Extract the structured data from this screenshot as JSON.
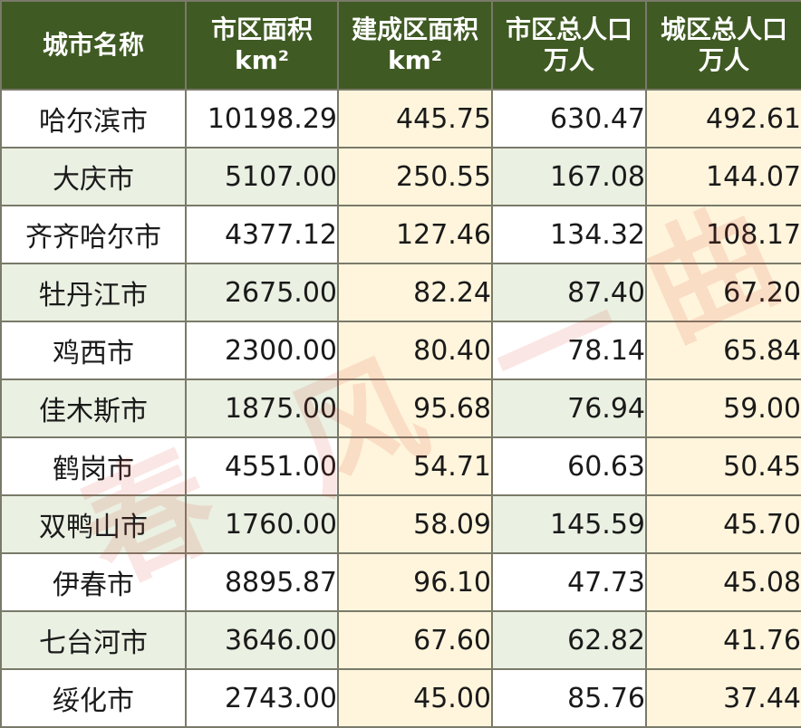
{
  "table": {
    "headers": [
      {
        "line1": "城市名称",
        "line2": ""
      },
      {
        "line1": "市区面积",
        "line2": "km²"
      },
      {
        "line1": "建成区面积",
        "line2": "km²"
      },
      {
        "line1": "市区总人口",
        "line2": "万人"
      },
      {
        "line1": "城区总人口",
        "line2": "万人"
      }
    ],
    "rows": [
      {
        "city": "哈尔滨市",
        "urban_area": "10198.29",
        "built_area": "445.75",
        "urban_pop": "630.47",
        "city_pop": "492.61"
      },
      {
        "city": "大庆市",
        "urban_area": "5107.00",
        "built_area": "250.55",
        "urban_pop": "167.08",
        "city_pop": "144.07"
      },
      {
        "city": "齐齐哈尔市",
        "urban_area": "4377.12",
        "built_area": "127.46",
        "urban_pop": "134.32",
        "city_pop": "108.17"
      },
      {
        "city": "牡丹江市",
        "urban_area": "2675.00",
        "built_area": "82.24",
        "urban_pop": "87.40",
        "city_pop": "67.20"
      },
      {
        "city": "鸡西市",
        "urban_area": "2300.00",
        "built_area": "80.40",
        "urban_pop": "78.14",
        "city_pop": "65.84"
      },
      {
        "city": "佳木斯市",
        "urban_area": "1875.00",
        "built_area": "95.68",
        "urban_pop": "76.94",
        "city_pop": "59.00"
      },
      {
        "city": "鹤岗市",
        "urban_area": "4551.00",
        "built_area": "54.71",
        "urban_pop": "60.63",
        "city_pop": "50.45"
      },
      {
        "city": "双鸭山市",
        "urban_area": "1760.00",
        "built_area": "58.09",
        "urban_pop": "145.59",
        "city_pop": "45.70"
      },
      {
        "city": "伊春市",
        "urban_area": "8895.87",
        "built_area": "96.10",
        "urban_pop": "47.73",
        "city_pop": "45.08"
      },
      {
        "city": "七台河市",
        "urban_area": "3646.00",
        "built_area": "67.60",
        "urban_pop": "62.82",
        "city_pop": "41.76"
      },
      {
        "city": "绥化市",
        "urban_area": "2743.00",
        "built_area": "45.00",
        "urban_pop": "85.76",
        "city_pop": "37.44"
      }
    ]
  },
  "watermark": {
    "chars": [
      "春",
      "风",
      "一",
      "曲"
    ],
    "color": "#dc3c32"
  },
  "colors": {
    "header_bg": "#3f5a23",
    "header_text": "#ffffff",
    "row_alt_bg": "#eaf0e2",
    "highlight_col_bg": "#fff5dc",
    "border": "#7a7a6a"
  }
}
